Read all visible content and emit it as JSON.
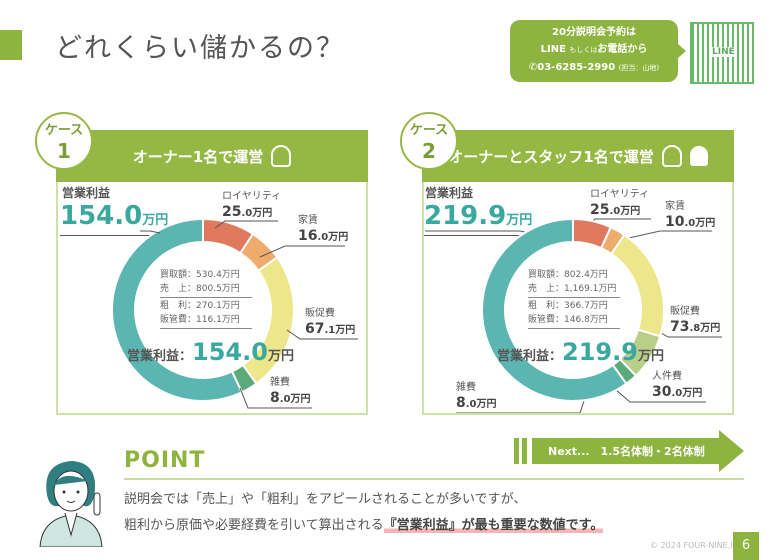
{
  "title": "どれくらい儲かるの？",
  "contact": {
    "line1": "20分説明会予約は",
    "line2_a": "LINE",
    "line2_b": "もしくは",
    "line2_c": "お電話から",
    "phone": "03-6285-2990",
    "person": "(担当：山地)",
    "qr_label": "LINE"
  },
  "cases": [
    {
      "badge": "ケース",
      "num": "1",
      "heading": "オーナー1名で運営",
      "profit_label": "営業利益",
      "profit_value": "154.0",
      "unit": "万円",
      "summary": [
        {
          "k": "買取額",
          "v": "530.4"
        },
        {
          "k": "売　上",
          "v": "800.5"
        },
        {
          "k": "粗　利",
          "v": "270.1"
        },
        {
          "k": "販管費",
          "v": "116.1"
        }
      ],
      "center_label": "営業利益："
    },
    {
      "badge": "ケース",
      "num": "2",
      "heading": "オーナーとスタッフ1名で運営",
      "profit_label": "営業利益",
      "profit_value": "219.9",
      "unit": "万円",
      "summary": [
        {
          "k": "買取額",
          "v": "802.4"
        },
        {
          "k": "売　上",
          "v": "1,169.1"
        },
        {
          "k": "粗　利",
          "v": "366.7"
        },
        {
          "k": "販管費",
          "v": "146.8"
        }
      ],
      "center_label": "営業利益："
    }
  ],
  "chart_data": [
    {
      "type": "pie",
      "title": "ケース1",
      "unit": "万円",
      "slices": [
        {
          "label": "ロイヤリティ",
          "value": 25.0,
          "color": "#e07a5f"
        },
        {
          "label": "家賃",
          "value": 16.0,
          "color": "#eeab6b"
        },
        {
          "label": "販促費",
          "value": 67.1,
          "color": "#eee68a"
        },
        {
          "label": "雑費",
          "value": 8.0,
          "color": "#5aaa7a"
        },
        {
          "label": "営業利益",
          "value": 154.0,
          "color": "#5bb5b0"
        }
      ]
    },
    {
      "type": "pie",
      "title": "ケース2",
      "unit": "万円",
      "slices": [
        {
          "label": "ロイヤリティ",
          "value": 25.0,
          "color": "#e07a5f"
        },
        {
          "label": "家賃",
          "value": 10.0,
          "color": "#eeab6b"
        },
        {
          "label": "販促費",
          "value": 73.8,
          "color": "#eee68a"
        },
        {
          "label": "人件費",
          "value": 30.0,
          "color": "#b9cf87"
        },
        {
          "label": "雑費",
          "value": 8.0,
          "color": "#5aaa7a"
        },
        {
          "label": "営業利益",
          "value": 219.9,
          "color": "#5bb5b0"
        }
      ]
    }
  ],
  "labels": {
    "c1": {
      "royalty": {
        "name": "ロイヤリティ",
        "int": "25",
        "dec": ".0"
      },
      "rent": {
        "name": "家賃",
        "int": "16",
        "dec": ".0"
      },
      "promo": {
        "name": "販促費",
        "int": "67",
        "dec": ".1"
      },
      "misc": {
        "name": "雑費",
        "int": "8",
        "dec": ".0"
      }
    },
    "c2": {
      "royalty": {
        "name": "ロイヤリティ",
        "int": "25",
        "dec": ".0"
      },
      "rent": {
        "name": "家賃",
        "int": "10",
        "dec": ".0"
      },
      "promo": {
        "name": "販促費",
        "int": "73",
        "dec": ".8"
      },
      "staff": {
        "name": "人件費",
        "int": "30",
        "dec": ".0"
      },
      "misc": {
        "name": "雑費",
        "int": "8",
        "dec": ".0"
      }
    }
  },
  "next": "Next...　1.5名体制・2名体制",
  "point": {
    "title": "POINT",
    "line1": "説明会では「売上」や「粗利」をアピールされることが多いですが、",
    "line2_a": "粗利から原価や必要経費を引いて算出される",
    "line2_b": "『営業利益』が最も重要な数値です。"
  },
  "footer": {
    "copyright": "© 2024 FOUR-NINE,Inc",
    "page": "6"
  }
}
